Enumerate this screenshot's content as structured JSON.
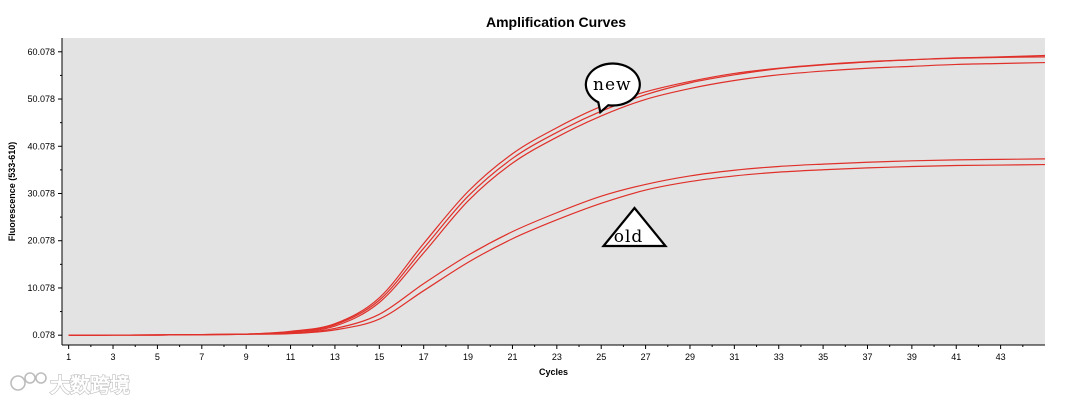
{
  "chart_data": {
    "type": "line",
    "title": "Amplification Curves",
    "xlabel": "Cycles",
    "ylabel": "Fluorescence (533-610)",
    "xlim": [
      0.7,
      45
    ],
    "ylim": [
      -2,
      63
    ],
    "xticks": [
      1,
      3,
      5,
      7,
      9,
      11,
      13,
      15,
      17,
      19,
      21,
      23,
      25,
      27,
      29,
      31,
      33,
      35,
      37,
      39,
      41,
      43
    ],
    "yticks": [
      0.078,
      10.078,
      20.078,
      30.078,
      40.078,
      50.078,
      60.078
    ],
    "ytick_labels": [
      "0.078",
      "10.078",
      "20.078",
      "30.078",
      "40.078",
      "50.078",
      "60.078"
    ],
    "grid": false,
    "legend": "none",
    "line_color": "#e0302a",
    "plot_background": "#e3e3e3",
    "x": [
      1,
      3,
      5,
      7,
      9,
      11,
      13,
      15,
      17,
      19,
      21,
      23,
      25,
      27,
      29,
      31,
      33,
      35,
      37,
      39,
      41,
      43,
      45
    ],
    "series": [
      {
        "group": "new",
        "values": [
          0.08,
          0.1,
          0.12,
          0.2,
          0.3,
          0.9,
          2.5,
          8.0,
          19.5,
          30.5,
          38.5,
          44.0,
          48.5,
          51.6,
          53.8,
          55.5,
          56.6,
          57.4,
          58.0,
          58.4,
          58.8,
          59.0,
          59.3
        ]
      },
      {
        "group": "new",
        "values": [
          0.08,
          0.1,
          0.12,
          0.2,
          0.3,
          0.8,
          2.3,
          7.5,
          18.5,
          29.5,
          37.5,
          43.0,
          47.5,
          51.0,
          53.5,
          55.2,
          56.5,
          57.3,
          57.9,
          58.4,
          58.7,
          58.9,
          59.0
        ]
      },
      {
        "group": "new",
        "values": [
          0.08,
          0.1,
          0.12,
          0.2,
          0.3,
          0.7,
          2.0,
          7.0,
          17.5,
          28.5,
          36.5,
          42.0,
          46.5,
          50.0,
          52.3,
          54.0,
          55.2,
          56.0,
          56.6,
          57.0,
          57.4,
          57.6,
          57.8
        ]
      },
      {
        "group": "old",
        "values": [
          0.08,
          0.1,
          0.12,
          0.2,
          0.3,
          0.5,
          1.5,
          4.5,
          11.0,
          17.0,
          22.0,
          26.0,
          29.5,
          32.0,
          33.8,
          35.0,
          35.8,
          36.3,
          36.7,
          37.0,
          37.2,
          37.3,
          37.4
        ]
      },
      {
        "group": "old",
        "values": [
          0.08,
          0.1,
          0.12,
          0.2,
          0.3,
          0.4,
          1.2,
          3.5,
          9.5,
          15.5,
          20.5,
          24.5,
          28.0,
          30.8,
          32.6,
          33.8,
          34.6,
          35.1,
          35.5,
          35.8,
          36.0,
          36.1,
          36.2
        ]
      }
    ],
    "annotations": [
      {
        "text": "new",
        "shape": "speech-bubble",
        "x": 25.5,
        "y": 53.0
      },
      {
        "text": "old",
        "shape": "triangle",
        "x": 26.5,
        "y": 21.5
      }
    ]
  },
  "watermark": {
    "text": "大数跨境",
    "icon": "watermark-logo-icon"
  }
}
